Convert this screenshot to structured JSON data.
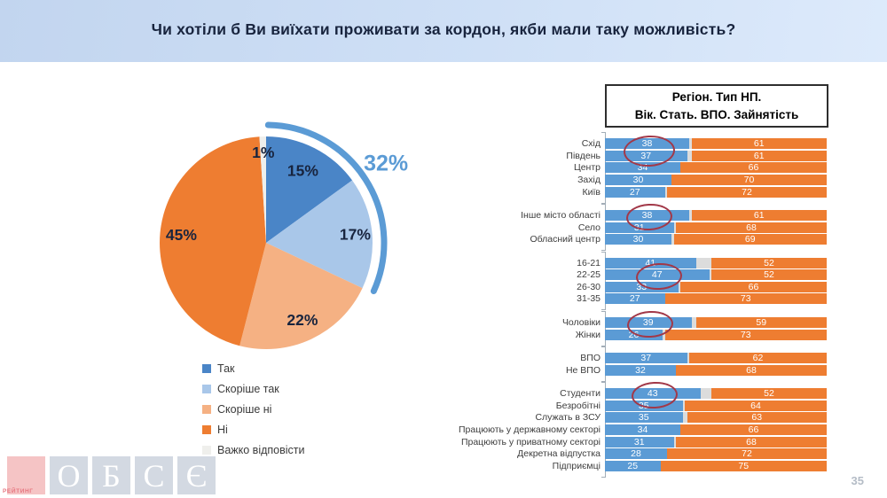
{
  "page": {
    "title": "Чи хотіли б Ви виїхати проживати за кордон, якби мали таку можливість?",
    "page_number": "35"
  },
  "panel": {
    "title_line1": "Регіон. Тип НП.",
    "title_line2": "Вік. Стать. ВПО. Зайнятість"
  },
  "footer": {
    "brand_text": "РЕЙТИНГ",
    "brand_letters": [
      "О",
      "Б",
      "С",
      "Є"
    ]
  },
  "colors": {
    "blue_bar": "#5b9bd5",
    "orange_bar": "#ee7d31",
    "gap_gray": "#dcdcdc",
    "callout_blue": "#5b9bd5",
    "annotation_red": "#a23848"
  },
  "chart_data": [
    {
      "type": "pie",
      "title": "Чи хотіли б Ви виїхати проживати за кордон, якби мали таку можливість?",
      "labels": [
        "Так",
        "Скоріше так",
        "Скоріше ні",
        "Ні",
        "Важко відповісти"
      ],
      "values": [
        15,
        17,
        22,
        45,
        1
      ],
      "colors": [
        "#4a85c7",
        "#a9c7e9",
        "#f5b183",
        "#ee7d31",
        "#efefec"
      ],
      "start_angle_deg": 0,
      "direction": "clockwise",
      "legend_position": "bottom-left",
      "callout": {
        "label": "32%",
        "span_percent": 32,
        "color": "#5b9bd5"
      }
    },
    {
      "type": "bar",
      "orientation": "horizontal",
      "stacked": true,
      "xlim": [
        0,
        100
      ],
      "title": "Регіон. Тип НП. Вік. Стать. ВПО. Зайнятість",
      "series_colors": [
        "#5b9bd5",
        "#dcdcdc",
        "#ee7d31"
      ],
      "annotation_color": "#a23848",
      "groups": [
        {
          "rows": [
            {
              "label": "Схід",
              "blue": 38,
              "orange": 61,
              "circled": 2
            },
            {
              "label": "Південь",
              "blue": 37,
              "orange": 61
            },
            {
              "label": "Центр",
              "blue": 34,
              "orange": 66
            },
            {
              "label": "Захід",
              "blue": 30,
              "orange": 70
            },
            {
              "label": "Київ",
              "blue": 27,
              "orange": 72
            }
          ]
        },
        {
          "rows": [
            {
              "label": "Інше місто області",
              "blue": 38,
              "orange": 61,
              "circled": 1
            },
            {
              "label": "Село",
              "blue": 31,
              "orange": 68
            },
            {
              "label": "Обласний центр",
              "blue": 30,
              "orange": 69
            }
          ]
        },
        {
          "rows": [
            {
              "label": "16-21",
              "blue": 41,
              "orange": 52
            },
            {
              "label": "22-25",
              "blue": 47,
              "orange": 52,
              "circled": 1
            },
            {
              "label": "26-30",
              "blue": 33,
              "orange": 66
            },
            {
              "label": "31-35",
              "blue": 27,
              "orange": 73
            }
          ]
        },
        {
          "rows": [
            {
              "label": "Чоловіки",
              "blue": 39,
              "orange": 59,
              "circled": 1
            },
            {
              "label": "Жінки",
              "blue": 26,
              "orange": 73
            }
          ]
        },
        {
          "rows": [
            {
              "label": "ВПО",
              "blue": 37,
              "orange": 62
            },
            {
              "label": "Не ВПО",
              "blue": 32,
              "orange": 68
            }
          ]
        },
        {
          "rows": [
            {
              "label": "Студенти",
              "blue": 43,
              "orange": 52,
              "circled": 1
            },
            {
              "label": "Безробітні",
              "blue": 35,
              "orange": 64
            },
            {
              "label": "Служать в ЗСУ",
              "blue": 35,
              "orange": 63
            },
            {
              "label": "Працюють у державному секторі",
              "blue": 34,
              "orange": 66
            },
            {
              "label": "Працюють у приватному секторі",
              "blue": 31,
              "orange": 68
            },
            {
              "label": "Декретна відпустка",
              "blue": 28,
              "orange": 72
            },
            {
              "label": "Підприємці",
              "blue": 25,
              "orange": 75
            }
          ]
        }
      ]
    }
  ]
}
